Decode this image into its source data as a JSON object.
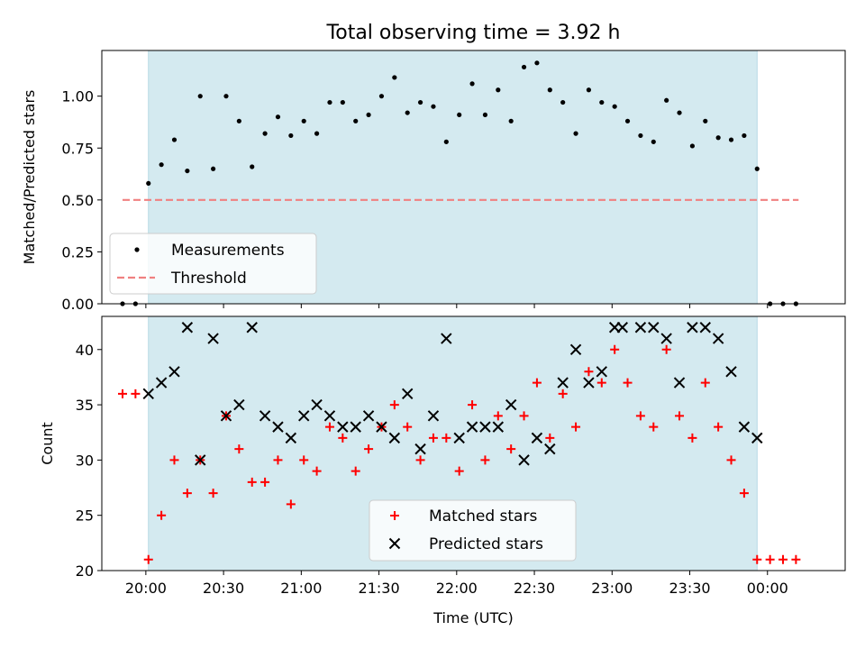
{
  "figure": {
    "title": "Total observing time = 3.92 h",
    "xlabel": "Time (UTC)"
  },
  "colors": {
    "span": "#d4eaf0",
    "span_edge": "#b7dae5",
    "measurements": "#000000",
    "threshold": "#f08080",
    "matched": "#ff0000",
    "predicted": "#000000"
  },
  "chart_data": [
    {
      "type": "scatter",
      "panel": "top",
      "xlabel": "",
      "ylabel": "Matched/Predicted stars",
      "xlim": [
        "19:43",
        "00:30"
      ],
      "ylim": [
        0,
        1.22
      ],
      "yticks": [
        "0.00",
        "0.25",
        "0.50",
        "0.75",
        "1.00"
      ],
      "shaded_span": [
        "20:01",
        "23:56"
      ],
      "threshold": {
        "name": "Threshold",
        "value": 0.5,
        "x_range": [
          "19:51",
          "00:12"
        ]
      },
      "legend": {
        "position": "lower-left",
        "entries": [
          "Measurements",
          "Threshold"
        ]
      },
      "series": [
        {
          "name": "Measurements",
          "marker": "dot",
          "x": [
            "19:51",
            "19:56",
            "20:01",
            "20:06",
            "20:11",
            "20:16",
            "20:21",
            "20:26",
            "20:31",
            "20:36",
            "20:41",
            "20:46",
            "20:51",
            "20:56",
            "21:01",
            "21:06",
            "21:11",
            "21:16",
            "21:21",
            "21:26",
            "21:31",
            "21:36",
            "21:41",
            "21:46",
            "21:51",
            "21:56",
            "22:01",
            "22:06",
            "22:11",
            "22:16",
            "22:21",
            "22:26",
            "22:31",
            "22:36",
            "22:41",
            "22:46",
            "22:51",
            "22:56",
            "23:01",
            "23:06",
            "23:11",
            "23:16",
            "23:21",
            "23:26",
            "23:31",
            "23:36",
            "23:41",
            "23:46",
            "23:51",
            "23:56",
            "00:01",
            "00:06",
            "00:11"
          ],
          "y": [
            0.0,
            0.0,
            0.58,
            0.67,
            0.79,
            0.64,
            1.0,
            0.65,
            1.0,
            0.88,
            0.66,
            0.82,
            0.9,
            0.81,
            0.88,
            0.82,
            0.97,
            0.97,
            0.88,
            0.91,
            1.0,
            1.09,
            0.92,
            0.97,
            0.95,
            0.78,
            0.91,
            1.06,
            0.91,
            1.03,
            0.88,
            1.14,
            1.16,
            1.03,
            0.97,
            0.82,
            1.03,
            0.97,
            0.95,
            0.88,
            0.81,
            0.78,
            0.98,
            0.92,
            0.76,
            0.88,
            0.8,
            0.79,
            0.81,
            0.65,
            0.0,
            0.0,
            0.0
          ]
        }
      ]
    },
    {
      "type": "scatter",
      "panel": "bottom",
      "xlabel": "Time (UTC)",
      "ylabel": "Count",
      "xlim": [
        "19:43",
        "00:30"
      ],
      "ylim": [
        20,
        43
      ],
      "yticks": [
        "20",
        "25",
        "30",
        "35",
        "40"
      ],
      "xticks": [
        "20:00",
        "20:30",
        "21:00",
        "21:30",
        "22:00",
        "22:30",
        "23:00",
        "23:30",
        "00:00"
      ],
      "shaded_span": [
        "20:01",
        "23:56"
      ],
      "legend": {
        "position": "lower-center",
        "entries": [
          "Matched stars",
          "Predicted stars"
        ]
      },
      "series": [
        {
          "name": "Matched stars",
          "marker": "plus",
          "x": [
            "19:51",
            "19:56",
            "20:01",
            "20:06",
            "20:11",
            "20:16",
            "20:21",
            "20:26",
            "20:31",
            "20:36",
            "20:41",
            "20:46",
            "20:51",
            "20:56",
            "21:01",
            "21:06",
            "21:11",
            "21:16",
            "21:21",
            "21:26",
            "21:31",
            "21:36",
            "21:41",
            "21:46",
            "21:51",
            "21:56",
            "22:01",
            "22:06",
            "22:11",
            "22:16",
            "22:21",
            "22:26",
            "22:31",
            "22:36",
            "22:41",
            "22:46",
            "22:51",
            "22:56",
            "23:01",
            "23:06",
            "23:11",
            "23:16",
            "23:21",
            "23:26",
            "23:31",
            "23:36",
            "23:41",
            "23:46",
            "23:51",
            "23:56",
            "00:01",
            "00:06",
            "00:11"
          ],
          "y": [
            36,
            36,
            21,
            25,
            30,
            27,
            30,
            27,
            34,
            31,
            28,
            28,
            30,
            26,
            30,
            29,
            33,
            32,
            29,
            31,
            33,
            35,
            33,
            30,
            32,
            32,
            29,
            35,
            30,
            34,
            31,
            34,
            37,
            32,
            36,
            33,
            38,
            37,
            40,
            37,
            34,
            33,
            40,
            34,
            32,
            37,
            33,
            30,
            27,
            21,
            21,
            21,
            21
          ]
        },
        {
          "name": "Predicted stars",
          "marker": "x",
          "x": [
            "20:01",
            "20:06",
            "20:11",
            "20:16",
            "20:21",
            "20:26",
            "20:31",
            "20:36",
            "20:41",
            "20:46",
            "20:51",
            "20:56",
            "21:01",
            "21:06",
            "21:11",
            "21:16",
            "21:21",
            "21:26",
            "21:31",
            "21:36",
            "21:41",
            "21:46",
            "21:51",
            "21:56",
            "22:01",
            "22:06",
            "22:11",
            "22:16",
            "22:21",
            "22:26",
            "22:31",
            "22:36",
            "22:41",
            "22:46",
            "22:51",
            "22:56",
            "23:01",
            "23:04",
            "23:11",
            "23:16",
            "23:21",
            "23:26",
            "23:31",
            "23:36",
            "23:41",
            "23:46",
            "23:51",
            "23:56"
          ],
          "y": [
            36,
            37,
            38,
            42,
            30,
            41,
            34,
            35,
            42,
            34,
            33,
            32,
            34,
            35,
            34,
            33,
            33,
            34,
            33,
            32,
            36,
            31,
            34,
            41,
            32,
            33,
            33,
            33,
            35,
            30,
            32,
            31,
            37,
            40,
            37,
            38,
            42,
            42,
            42,
            42,
            41,
            37,
            42,
            42,
            41,
            38,
            33,
            32
          ]
        }
      ]
    }
  ]
}
